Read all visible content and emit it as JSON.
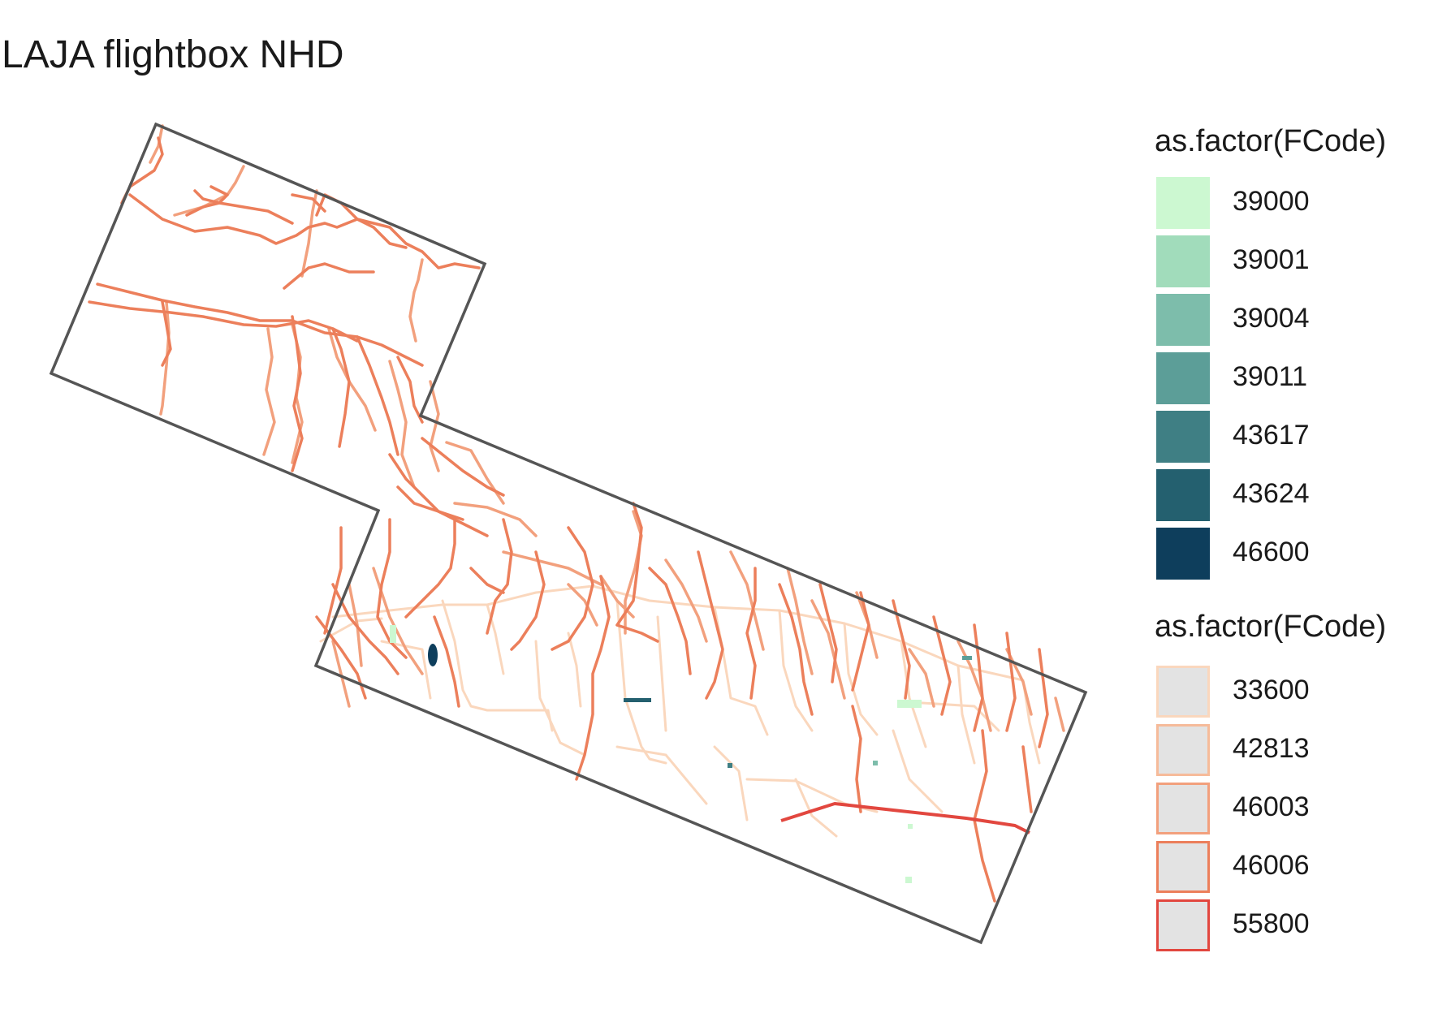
{
  "title": "LAJA flightbox NHD",
  "legend_fill": {
    "title": "as.factor(FCode)",
    "items": [
      {
        "label": "39000",
        "color": "#ccf8d1"
      },
      {
        "label": "39001",
        "color": "#a1dcbb"
      },
      {
        "label": "39004",
        "color": "#7dbdab"
      },
      {
        "label": "39011",
        "color": "#5c9e98"
      },
      {
        "label": "43617",
        "color": "#3f7f84"
      },
      {
        "label": "43624",
        "color": "#24606f"
      },
      {
        "label": "46600",
        "color": "#0e3e5c"
      }
    ]
  },
  "legend_line": {
    "title": "as.factor(FCode)",
    "items": [
      {
        "label": "33600",
        "color": "#fad7bd"
      },
      {
        "label": "42813",
        "color": "#f6bb9a"
      },
      {
        "label": "46003",
        "color": "#f2a07d"
      },
      {
        "label": "46006",
        "color": "#ec7f5b"
      },
      {
        "label": "55800",
        "color": "#e2473f"
      }
    ]
  },
  "map_style": {
    "boundary_color": "#555555",
    "swatch_fill": "#e3e3e3"
  }
}
